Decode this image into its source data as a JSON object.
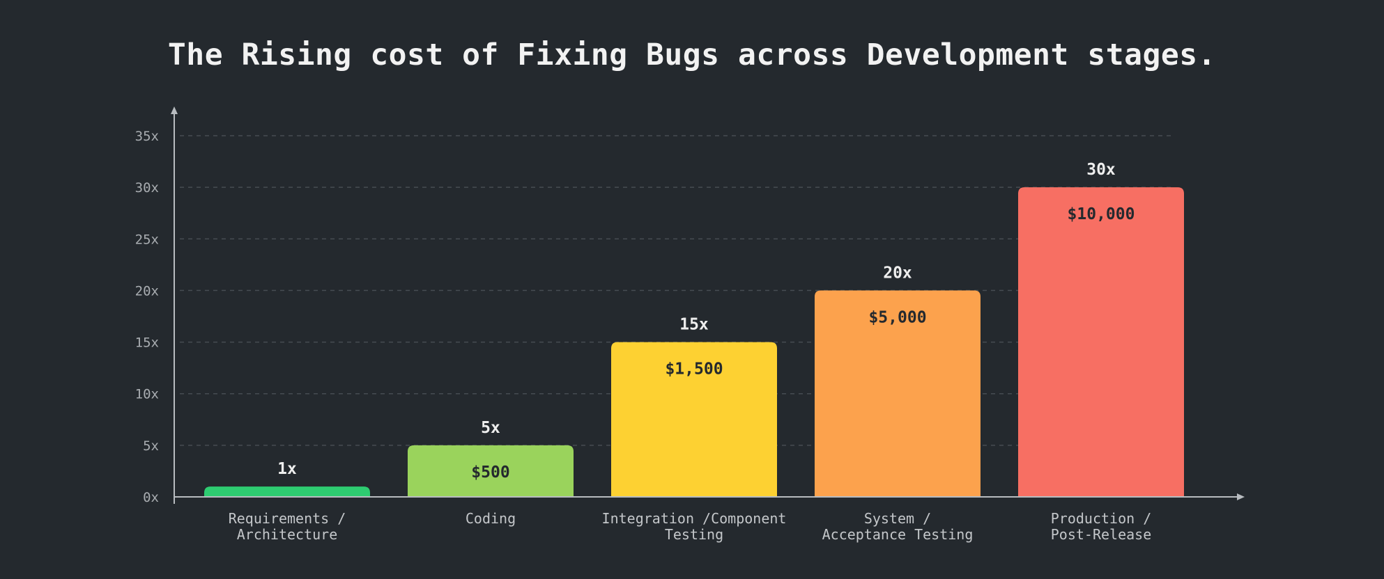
{
  "chart_data": {
    "type": "bar",
    "title": "The Rising cost of Fixing Bugs across Development stages.",
    "xlabel": "",
    "ylabel": "",
    "ylim": [
      0,
      35
    ],
    "yticks": [
      0,
      5,
      10,
      15,
      20,
      25,
      30,
      35
    ],
    "ytick_suffix": "x",
    "grid": true,
    "categories": [
      [
        "Requirements /",
        "Architecture"
      ],
      [
        "Coding"
      ],
      [
        "Integration /Component",
        "Testing"
      ],
      [
        "System /",
        "Acceptance Testing"
      ],
      [
        "Production /",
        "Post-Release"
      ]
    ],
    "values": [
      1,
      5,
      15,
      20,
      30
    ],
    "value_labels": [
      "1x",
      "5x",
      "15x",
      "20x",
      "30x"
    ],
    "cost_labels": [
      "",
      "$500",
      "$1,500",
      "$5,000",
      "$10,000"
    ],
    "colors": [
      "#2ecc71",
      "#9ad35c",
      "#fdd132",
      "#fca24d",
      "#f76f63"
    ],
    "background": "#24292e",
    "axis_color": "#b8bcc0",
    "grid_color": "#464c52"
  }
}
